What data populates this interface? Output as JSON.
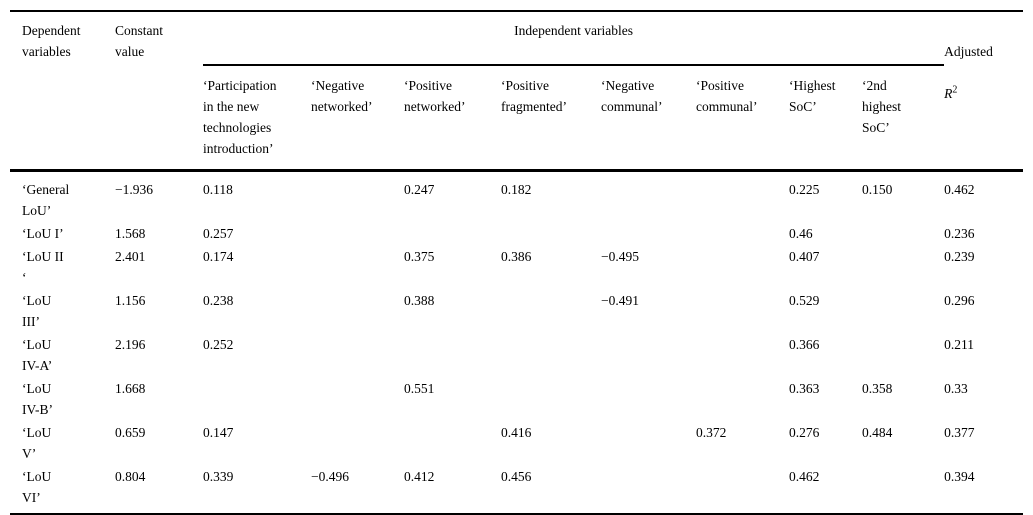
{
  "table": {
    "header": {
      "dependent": "Dependent\nvariables",
      "constant": "Constant\nvalue",
      "independent_group": "Independent variables",
      "adjusted_line1": "Adjusted",
      "adjusted_symbol": "R",
      "adjusted_exponent": "2",
      "independent_columns": [
        "‘Participation\nin the new\ntechnologies\nintroduction’",
        "‘Negative\nnetworked’",
        "‘Positive\nnetworked’",
        "‘Positive\nfragmented’",
        "‘Negative\ncommunal’",
        "‘Positive\ncommunal’",
        "‘Highest\nSoC’",
        "‘2nd\nhighest\nSoC’"
      ]
    },
    "value_columns": [
      "constant",
      "participation",
      "negative_networked",
      "positive_networked",
      "positive_fragmented",
      "negative_communal",
      "positive_communal",
      "highest_soc",
      "second_highest_soc",
      "adjusted_r2"
    ],
    "rows": [
      {
        "label": "‘General\nLoU’",
        "values": [
          "−1.936",
          "0.118",
          "",
          "0.247",
          "0.182",
          "",
          "",
          "0.225",
          "0.150",
          "0.462"
        ]
      },
      {
        "label": "‘LoU I’",
        "values": [
          "1.568",
          "0.257",
          "",
          "",
          "",
          "",
          "",
          "0.46",
          "",
          "0.236"
        ]
      },
      {
        "label": "‘LoU II\n‘",
        "values": [
          "2.401",
          "0.174",
          "",
          "0.375",
          "0.386",
          "−0.495",
          "",
          "0.407",
          "",
          "0.239"
        ]
      },
      {
        "label": "‘LoU\nIII’",
        "values": [
          "1.156",
          "0.238",
          "",
          "0.388",
          "",
          "−0.491",
          "",
          "0.529",
          "",
          "0.296"
        ]
      },
      {
        "label": "‘LoU\nIV-A’",
        "values": [
          "2.196",
          "0.252",
          "",
          "",
          "",
          "",
          "",
          "0.366",
          "",
          "0.211"
        ]
      },
      {
        "label": "‘LoU\nIV-B’",
        "values": [
          "1.668",
          "",
          "",
          "0.551",
          "",
          "",
          "",
          "0.363",
          "0.358",
          "0.33"
        ]
      },
      {
        "label": "‘LoU\nV’",
        "values": [
          "0.659",
          "0.147",
          "",
          "",
          "0.416",
          "",
          "0.372",
          "0.276",
          "0.484",
          "0.377"
        ]
      },
      {
        "label": "‘LoU\nVI’",
        "values": [
          "0.804",
          "0.339",
          "−0.496",
          "0.412",
          "0.456",
          "",
          "",
          "0.462",
          "",
          "0.394"
        ]
      }
    ]
  }
}
